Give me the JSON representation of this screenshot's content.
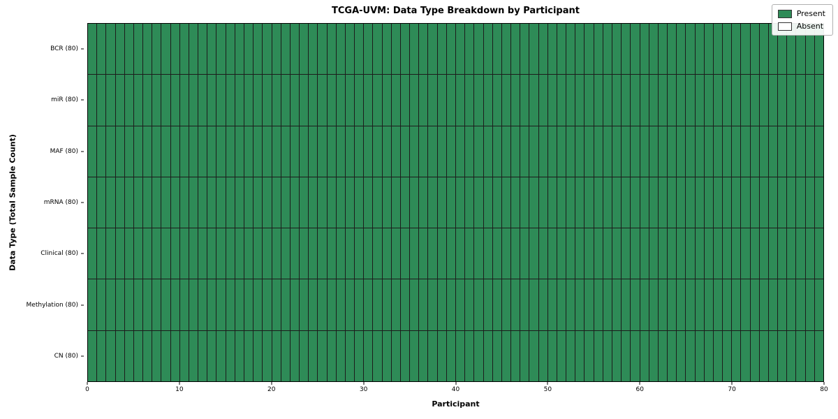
{
  "chart": {
    "title": "TCGA-UVM: Data Type Breakdown by Participant",
    "xlabel": "Participant",
    "ylabel": "Data Type (Total Sample Count)"
  },
  "colors": {
    "present": "#2e8b57",
    "absent": "#ffffff",
    "gridline": "#1c1c1c",
    "axis": "#000000",
    "legend_border": "#b0b0b0"
  },
  "legend": {
    "items": [
      {
        "label": "Present",
        "color": "#2e8b57"
      },
      {
        "label": "Absent",
        "color": "#ffffff"
      }
    ]
  },
  "chart_data": {
    "type": "heatmap",
    "title": "TCGA-UVM: Data Type Breakdown by Participant",
    "xlabel": "Participant",
    "ylabel": "Data Type (Total Sample Count)",
    "x_range": [
      0,
      80
    ],
    "x_ticks": [
      0,
      10,
      20,
      30,
      40,
      50,
      60,
      70,
      80
    ],
    "n_participants": 80,
    "rows": [
      {
        "label": "BCR (80)",
        "present_count": 80,
        "absent_count": 0
      },
      {
        "label": "miR (80)",
        "present_count": 80,
        "absent_count": 0
      },
      {
        "label": "MAF (80)",
        "present_count": 80,
        "absent_count": 0
      },
      {
        "label": "mRNA (80)",
        "present_count": 80,
        "absent_count": 0
      },
      {
        "label": "Clinical (80)",
        "present_count": 80,
        "absent_count": 0
      },
      {
        "label": "Methylation (80)",
        "present_count": 80,
        "absent_count": 0
      },
      {
        "label": "CN (80)",
        "present_count": 80,
        "absent_count": 0
      }
    ],
    "cell_values": "all cells Present (1) for every row across all 80 participants",
    "grid": "on",
    "legend_entries": [
      "Present",
      "Absent"
    ],
    "legend_position": "upper right"
  }
}
